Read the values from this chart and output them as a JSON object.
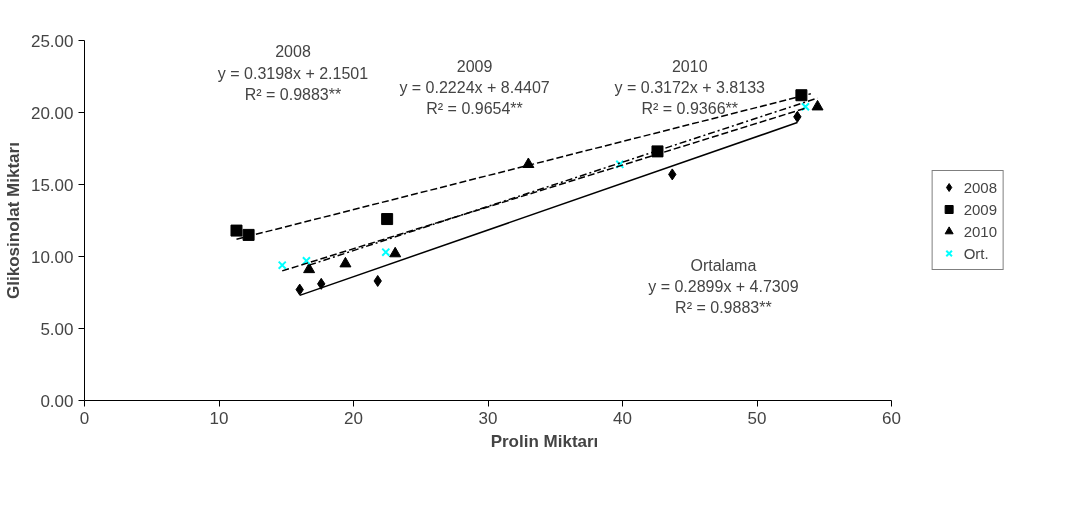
{
  "chart_data": {
    "type": "scatter",
    "xlabel": "Prolin Miktarı",
    "ylabel": "Glikosinolat Miktarı",
    "xlim": [
      0,
      60
    ],
    "xticks": [
      0,
      10,
      20,
      30,
      40,
      50,
      60
    ],
    "ylim": [
      0,
      25
    ],
    "yticks": [
      {
        "value": 0,
        "label": "0.00"
      },
      {
        "value": 5,
        "label": "5.00"
      },
      {
        "value": 10,
        "label": "10.00"
      },
      {
        "value": 15,
        "label": "15.00"
      },
      {
        "value": 20,
        "label": "20.00"
      },
      {
        "value": 25,
        "label": "25.00"
      }
    ],
    "grid": false,
    "legend": "right",
    "series": [
      {
        "name": "2008",
        "color": "#000000",
        "marker": "diamond",
        "x": [
          16.0,
          17.6,
          21.8,
          43.7,
          53.0
        ],
        "values": [
          7.7,
          8.1,
          8.3,
          15.7,
          19.7
        ]
      },
      {
        "name": "2009",
        "color": "#000000",
        "marker": "square",
        "x": [
          11.3,
          12.2,
          22.5,
          42.6,
          53.3
        ],
        "values": [
          11.8,
          11.5,
          12.6,
          17.3,
          21.2
        ]
      },
      {
        "name": "2010",
        "color": "#000000",
        "marker": "triangle",
        "x": [
          16.7,
          19.4,
          23.1,
          33.0,
          54.5
        ],
        "values": [
          9.1,
          9.5,
          10.2,
          16.4,
          20.4
        ]
      },
      {
        "name": "Ort.",
        "color": "#00ffff",
        "marker": "cross",
        "x": [
          14.7,
          16.5,
          22.4,
          39.8,
          53.6
        ],
        "values": [
          9.4,
          9.7,
          10.3,
          16.4,
          20.4
        ]
      },
      {
        "type": "line",
        "color": "#000000",
        "line_style": "solid",
        "x": [
          16.0,
          53.0
        ],
        "values": [
          7.3,
          19.3
        ]
      },
      {
        "type": "line",
        "color": "#000000",
        "line_style": "dashed",
        "x": [
          11.3,
          54.0
        ],
        "values": [
          11.2,
          21.3
        ]
      },
      {
        "type": "line",
        "color": "#000000",
        "line_style": "dashdot",
        "x": [
          16.7,
          54.5
        ],
        "values": [
          9.4,
          21.0
        ]
      },
      {
        "type": "line",
        "color": "#000000",
        "line_style": "dashed",
        "x": [
          14.7,
          53.6
        ],
        "values": [
          9.0,
          20.3
        ]
      }
    ],
    "annotations": [
      "2008\ny = 0.3198x + 2.1501\nR² = 0.9883**",
      "2009\ny = 0.2224x + 8.4407\nR² = 0.9654**",
      "2010\ny = 0.3172x + 3.8133\nR² = 0.9366**",
      "Ortalama\ny = 0.2899x + 4.7309\nR² = 0.9883**"
    ]
  }
}
